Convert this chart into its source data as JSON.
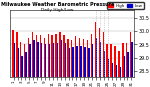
{
  "title": "Milwaukee Weather Barometric Pressure",
  "subtitle": "Daily High/Low",
  "ylabel_right": [
    "30.5",
    "30.0",
    "29.5",
    "29.0",
    "28.5"
  ],
  "ylim": [
    28.3,
    30.8
  ],
  "bar_width": 0.35,
  "legend_high": "High",
  "legend_low": "Low",
  "color_high": "#FF0000",
  "color_low": "#0000CC",
  "bg_color": "#FFFFFF",
  "grid_color": "#AAAAAA",
  "days": [
    1,
    2,
    3,
    4,
    5,
    6,
    7,
    8,
    9,
    10,
    11,
    12,
    13,
    14,
    15,
    16,
    17,
    18,
    19,
    20,
    21,
    22,
    23,
    24,
    25,
    26,
    27,
    28,
    29,
    30,
    31
  ],
  "highs": [
    30.05,
    29.95,
    29.6,
    29.5,
    29.75,
    29.95,
    29.85,
    29.85,
    29.75,
    29.9,
    29.85,
    29.9,
    29.95,
    29.85,
    29.7,
    29.65,
    29.8,
    29.75,
    29.7,
    29.65,
    29.9,
    30.35,
    30.1,
    29.95,
    29.5,
    29.5,
    29.45,
    29.25,
    29.55,
    29.55,
    29.95
  ],
  "lows": [
    29.55,
    29.35,
    29.05,
    29.2,
    29.5,
    29.65,
    29.6,
    29.55,
    29.5,
    29.5,
    29.55,
    29.55,
    29.65,
    29.55,
    29.35,
    29.4,
    29.45,
    29.45,
    29.4,
    29.35,
    29.5,
    29.75,
    29.6,
    29.25,
    28.95,
    28.8,
    28.75,
    28.65,
    29.05,
    29.2,
    29.6
  ],
  "dotted_days": [
    22,
    23,
    24,
    25
  ],
  "tick_labels": [
    "1",
    "",
    "3",
    "",
    "5",
    "",
    "7",
    "",
    "9",
    "",
    "11",
    "",
    "13",
    "",
    "15",
    "",
    "17",
    "",
    "19",
    "",
    "21",
    "",
    "23",
    "",
    "25",
    "",
    "27",
    "",
    "29",
    "",
    "31"
  ]
}
